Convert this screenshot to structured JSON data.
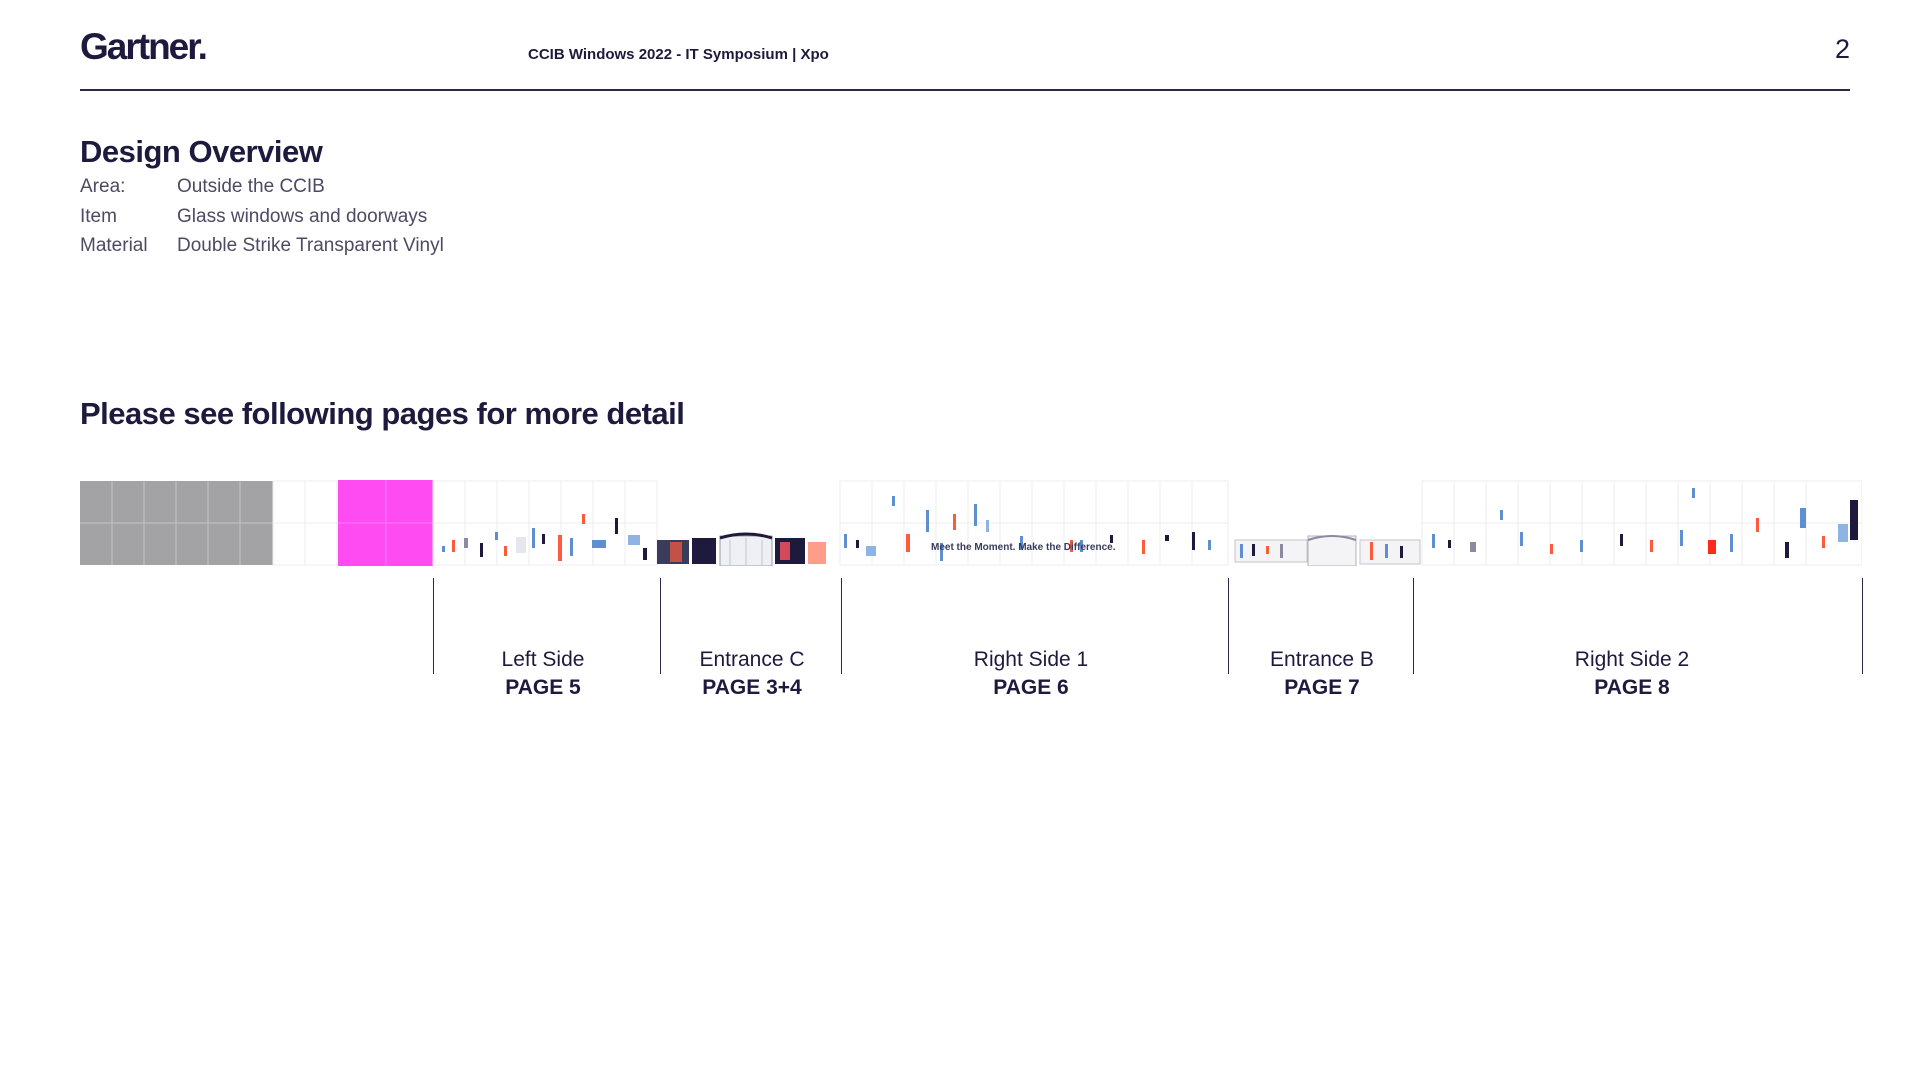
{
  "header": {
    "logo": "Gartner.",
    "doc_title": "CCIB Windows 2022 - IT Symposium | Xpo",
    "page_number": "2"
  },
  "overview": {
    "title": "Design Overview",
    "specs": [
      {
        "key": "Area:",
        "value": "Outside the CCIB"
      },
      {
        "key": "Item",
        "value": "Glass windows and doorways"
      },
      {
        "key": "Material",
        "value": "Double Strike Transparent Vinyl"
      }
    ]
  },
  "detail_heading": "Please see following pages for more detail",
  "strip": {
    "banner_text": "Meet the Moment. Make the Difference."
  },
  "sections": [
    {
      "name": "Left Side",
      "page": "PAGE 5"
    },
    {
      "name": "Entrance C",
      "page": "PAGE 3+4"
    },
    {
      "name": "Right Side 1",
      "page": "PAGE 6"
    },
    {
      "name": "Entrance B",
      "page": "PAGE 7"
    },
    {
      "name": "Right Side 2",
      "page": "PAGE 8"
    }
  ],
  "colors": {
    "navy": "#1e1a3e",
    "gray_block": "#a3a3a6",
    "magenta_block": "#ff4bf2",
    "accent_red": "#ff5a3c",
    "accent_blue": "#5e8fd1"
  }
}
